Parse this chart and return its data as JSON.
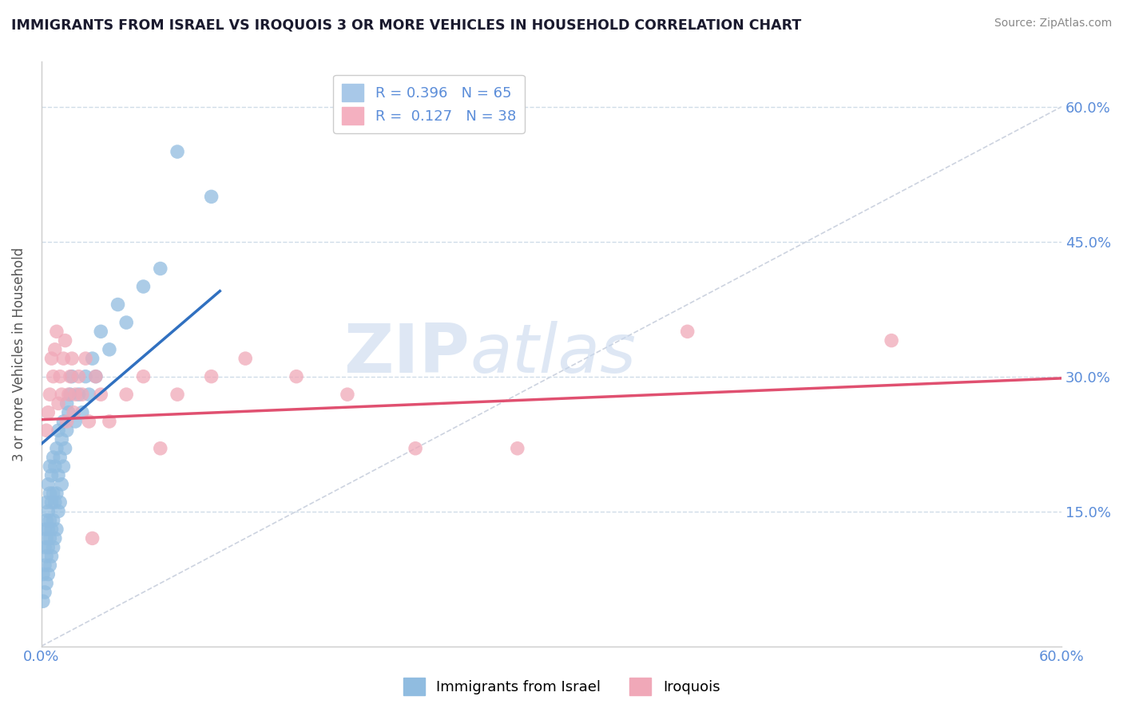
{
  "title": "IMMIGRANTS FROM ISRAEL VS IROQUOIS 3 OR MORE VEHICLES IN HOUSEHOLD CORRELATION CHART",
  "source": "Source: ZipAtlas.com",
  "ylabel": "3 or more Vehicles in Household",
  "xlim": [
    0.0,
    0.6
  ],
  "ylim": [
    0.0,
    0.65
  ],
  "xticks": [
    0.0,
    0.6
  ],
  "xtick_labels": [
    "0.0%",
    "60.0%"
  ],
  "yticks": [
    0.15,
    0.3,
    0.45,
    0.6
  ],
  "ytick_labels": [
    "15.0%",
    "30.0%",
    "45.0%",
    "60.0%"
  ],
  "legend_r_entries": [
    {
      "label": "R = 0.396   N = 65",
      "color": "#a8c8e8"
    },
    {
      "label": "R =  0.127   N = 38",
      "color": "#f4b0c0"
    }
  ],
  "watermark_zip": "ZIP",
  "watermark_atlas": "atlas",
  "blue_scatter_color": "#90bce0",
  "pink_scatter_color": "#f0a8b8",
  "blue_line_color": "#3070c0",
  "pink_line_color": "#e05070",
  "diag_line_color": "#c0c8d8",
  "axis_color": "#5b8dd9",
  "grid_color": "#d0dce8",
  "background_color": "#ffffff",
  "israel_x": [
    0.001,
    0.001,
    0.002,
    0.002,
    0.002,
    0.002,
    0.003,
    0.003,
    0.003,
    0.003,
    0.003,
    0.004,
    0.004,
    0.004,
    0.004,
    0.004,
    0.005,
    0.005,
    0.005,
    0.005,
    0.005,
    0.006,
    0.006,
    0.006,
    0.006,
    0.007,
    0.007,
    0.007,
    0.007,
    0.008,
    0.008,
    0.008,
    0.009,
    0.009,
    0.009,
    0.01,
    0.01,
    0.01,
    0.011,
    0.011,
    0.012,
    0.012,
    0.013,
    0.013,
    0.014,
    0.015,
    0.015,
    0.016,
    0.017,
    0.018,
    0.02,
    0.022,
    0.024,
    0.026,
    0.028,
    0.03,
    0.032,
    0.035,
    0.04,
    0.045,
    0.05,
    0.06,
    0.07,
    0.08,
    0.1
  ],
  "israel_y": [
    0.05,
    0.08,
    0.06,
    0.09,
    0.11,
    0.13,
    0.07,
    0.1,
    0.12,
    0.14,
    0.16,
    0.08,
    0.11,
    0.13,
    0.15,
    0.18,
    0.09,
    0.12,
    0.14,
    0.17,
    0.2,
    0.1,
    0.13,
    0.16,
    0.19,
    0.11,
    0.14,
    0.17,
    0.21,
    0.12,
    0.16,
    0.2,
    0.13,
    0.17,
    0.22,
    0.15,
    0.19,
    0.24,
    0.16,
    0.21,
    0.18,
    0.23,
    0.2,
    0.25,
    0.22,
    0.24,
    0.27,
    0.26,
    0.28,
    0.3,
    0.25,
    0.28,
    0.26,
    0.3,
    0.28,
    0.32,
    0.3,
    0.35,
    0.33,
    0.38,
    0.36,
    0.4,
    0.42,
    0.55,
    0.5
  ],
  "iroquois_x": [
    0.003,
    0.004,
    0.005,
    0.006,
    0.007,
    0.008,
    0.009,
    0.01,
    0.011,
    0.012,
    0.013,
    0.014,
    0.015,
    0.016,
    0.017,
    0.018,
    0.019,
    0.02,
    0.022,
    0.024,
    0.026,
    0.028,
    0.03,
    0.032,
    0.035,
    0.04,
    0.05,
    0.06,
    0.07,
    0.08,
    0.1,
    0.12,
    0.15,
    0.18,
    0.22,
    0.28,
    0.38,
    0.5
  ],
  "iroquois_y": [
    0.24,
    0.26,
    0.28,
    0.32,
    0.3,
    0.33,
    0.35,
    0.27,
    0.3,
    0.28,
    0.32,
    0.34,
    0.25,
    0.28,
    0.3,
    0.32,
    0.26,
    0.28,
    0.3,
    0.28,
    0.32,
    0.25,
    0.12,
    0.3,
    0.28,
    0.25,
    0.28,
    0.3,
    0.22,
    0.28,
    0.3,
    0.32,
    0.3,
    0.28,
    0.22,
    0.22,
    0.35,
    0.34
  ],
  "israel_line_x": [
    0.0,
    0.105
  ],
  "israel_line_y": [
    0.225,
    0.395
  ],
  "iroquois_line_x": [
    0.0,
    0.6
  ],
  "iroquois_line_y": [
    0.252,
    0.298
  ],
  "diag_line_x": [
    0.0,
    0.6
  ],
  "diag_line_y": [
    0.0,
    0.6
  ]
}
